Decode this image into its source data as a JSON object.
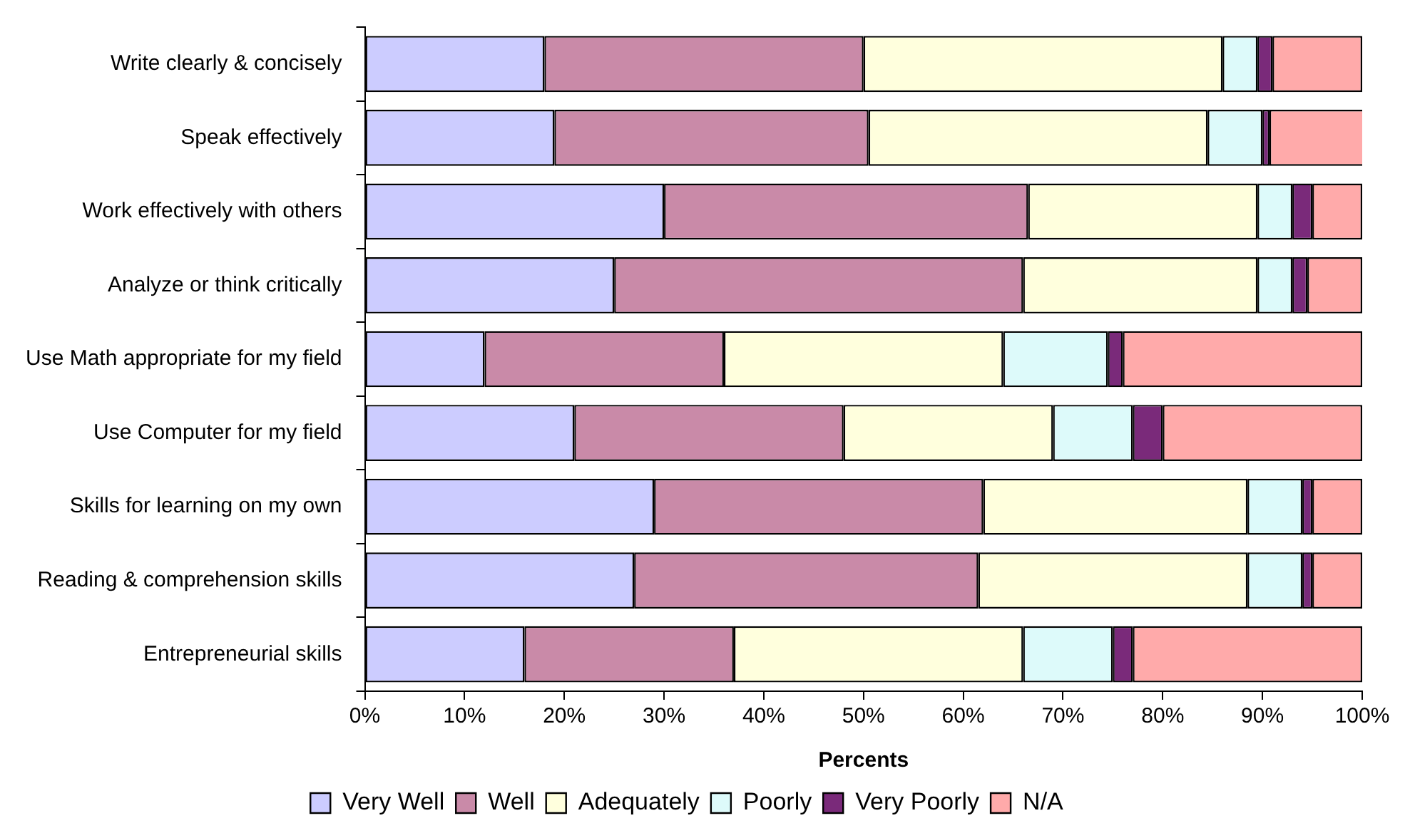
{
  "chart_data": {
    "type": "bar",
    "orientation": "horizontal",
    "stacked": true,
    "xlabel": "Percents",
    "categories": [
      "Write clearly & concisely",
      "Speak effectively",
      "Work effectively with others",
      "Analyze or think critically",
      "Use Math appropriate for my field",
      "Use Computer for my field",
      "Skills for learning on my own",
      "Reading & comprehension skills",
      "Entrepreneurial skills"
    ],
    "series": [
      {
        "name": "Very Well",
        "color": "#ccccff",
        "values": [
          18,
          19,
          30,
          25,
          12,
          21,
          29,
          27,
          16
        ]
      },
      {
        "name": "Well",
        "color": "#c98aa8",
        "values": [
          32,
          31.5,
          36.5,
          41,
          24,
          27,
          33,
          34.5,
          21
        ]
      },
      {
        "name": "Adequately",
        "color": "#ffffdd",
        "values": [
          36,
          34,
          23,
          23.5,
          28,
          21,
          26.5,
          27,
          29
        ]
      },
      {
        "name": "Poorly",
        "color": "#ddfafa",
        "values": [
          3.5,
          5.5,
          3.5,
          3.5,
          10.5,
          8,
          5.5,
          5.5,
          9
        ]
      },
      {
        "name": "Very Poorly",
        "color": "#7a2a7a",
        "values": [
          1.5,
          0.7,
          2,
          1.5,
          1.5,
          3,
          1,
          1,
          2
        ]
      },
      {
        "name": "N/A",
        "color": "#ffaaaa",
        "values": [
          9,
          9.5,
          5,
          5.5,
          24,
          20,
          5,
          5,
          23
        ]
      }
    ],
    "xlim": [
      0,
      100
    ],
    "xticks": [
      {
        "value": 0,
        "label": "0%"
      },
      {
        "value": 10,
        "label": "10%"
      },
      {
        "value": 20,
        "label": "20%"
      },
      {
        "value": 30,
        "label": "30%"
      },
      {
        "value": 40,
        "label": "40%"
      },
      {
        "value": 50,
        "label": "50%"
      },
      {
        "value": 60,
        "label": "60%"
      },
      {
        "value": 70,
        "label": "70%"
      },
      {
        "value": 80,
        "label": "80%"
      },
      {
        "value": 90,
        "label": "90%"
      },
      {
        "value": 100,
        "label": "100%"
      }
    ],
    "grid": false,
    "legend": "bottom"
  }
}
